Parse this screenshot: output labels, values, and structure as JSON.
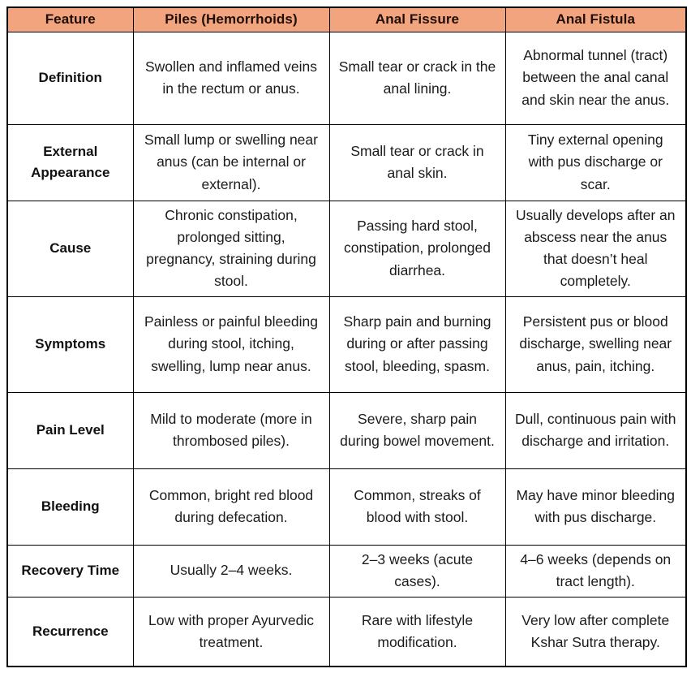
{
  "colors": {
    "header_bg": "#f2a47e",
    "header_text": "#1f0d06",
    "body_text": "#1b1b1b",
    "border": "#000000",
    "page_bg": "#ffffff"
  },
  "table": {
    "columns": [
      "Feature",
      "Piles (Hemorrhoids)",
      "Anal Fissure",
      "Anal Fistula"
    ],
    "rows": [
      {
        "feature": "Definition",
        "piles": "Swollen and inflamed veins in the rectum or anus.",
        "fissure": "Small tear or crack in the anal lining.",
        "fistula": "Abnormal tunnel (tract) between the anal canal and skin near the anus."
      },
      {
        "feature": "External Appearance",
        "piles": "Small lump or swelling near anus (can be internal or external).",
        "fissure": "Small tear or crack in anal skin.",
        "fistula": "Tiny external opening with pus discharge or scar."
      },
      {
        "feature": "Cause",
        "piles": "Chronic constipation, prolonged sitting, pregnancy, straining during stool.",
        "fissure": "Passing hard stool, constipation, prolonged diarrhea.",
        "fistula": "Usually develops after an abscess near the anus that doesn’t heal completely."
      },
      {
        "feature": "Symptoms",
        "piles": "Painless or painful bleeding during stool, itching, swelling, lump near anus.",
        "fissure": "Sharp pain and burning during or after passing stool, bleeding, spasm.",
        "fistula": "Persistent pus or blood discharge, swelling near anus, pain, itching."
      },
      {
        "feature": "Pain Level",
        "piles": "Mild to moderate (more in thrombosed piles).",
        "fissure": "Severe, sharp pain during bowel movement.",
        "fistula": "Dull, continuous pain with discharge and irritation."
      },
      {
        "feature": "Bleeding",
        "piles": "Common, bright red blood during defecation.",
        "fissure": "Common, streaks of blood with stool.",
        "fistula": "May have minor bleeding with pus discharge."
      },
      {
        "feature": "Recovery Time",
        "piles": "Usually 2–4 weeks.",
        "fissure": "2–3 weeks (acute cases).",
        "fistula": "4–6 weeks (depends on tract length)."
      },
      {
        "feature": "Recurrence",
        "piles": "Low with proper Ayurvedic treatment.",
        "fissure": "Rare with lifestyle modification.",
        "fistula": "Very low after complete Kshar Sutra therapy."
      }
    ]
  }
}
